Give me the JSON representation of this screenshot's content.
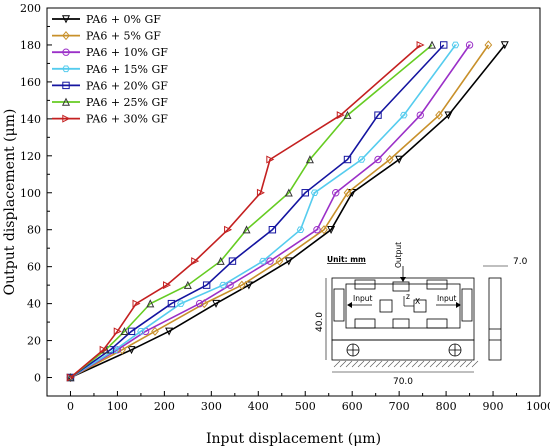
{
  "chart_data": {
    "type": "line",
    "title": "",
    "xlabel": "Input displacement (μm)",
    "ylabel": "Output displacement (μm)",
    "xlim": [
      -50,
      1000
    ],
    "ylim": [
      -10,
      200
    ],
    "x_ticks": [
      0,
      100,
      200,
      300,
      400,
      500,
      600,
      700,
      800,
      900,
      1000
    ],
    "y_ticks": [
      0,
      20,
      40,
      60,
      80,
      100,
      120,
      140,
      160,
      180,
      200
    ],
    "grid": false,
    "legend_position": "top-left",
    "series": [
      {
        "name": "PA6 + 0% GF",
        "color": "#000000",
        "marker": "triangle-down",
        "points": [
          [
            0,
            0
          ],
          [
            130,
            15
          ],
          [
            210,
            25
          ],
          [
            310,
            40
          ],
          [
            380,
            50
          ],
          [
            465,
            63
          ],
          [
            555,
            80
          ],
          [
            600,
            100
          ],
          [
            700,
            118
          ],
          [
            805,
            142
          ],
          [
            925,
            180
          ]
        ]
      },
      {
        "name": "PA6 + 5% GF",
        "color": "#c8902a",
        "marker": "diamond",
        "points": [
          [
            0,
            0
          ],
          [
            110,
            15
          ],
          [
            180,
            25
          ],
          [
            285,
            40
          ],
          [
            365,
            50
          ],
          [
            445,
            63
          ],
          [
            540,
            80
          ],
          [
            590,
            100
          ],
          [
            680,
            118
          ],
          [
            785,
            142
          ],
          [
            890,
            180
          ]
        ]
      },
      {
        "name": "PA6 + 10% GF",
        "color": "#9b30c8",
        "marker": "circle",
        "points": [
          [
            0,
            0
          ],
          [
            100,
            15
          ],
          [
            160,
            25
          ],
          [
            275,
            40
          ],
          [
            340,
            50
          ],
          [
            425,
            63
          ],
          [
            525,
            80
          ],
          [
            565,
            100
          ],
          [
            655,
            118
          ],
          [
            745,
            142
          ],
          [
            850,
            180
          ]
        ]
      },
      {
        "name": "PA6 + 15% GF",
        "color": "#55ccee",
        "marker": "hexagon",
        "points": [
          [
            0,
            0
          ],
          [
            95,
            15
          ],
          [
            150,
            25
          ],
          [
            235,
            40
          ],
          [
            325,
            50
          ],
          [
            410,
            63
          ],
          [
            490,
            80
          ],
          [
            520,
            100
          ],
          [
            620,
            118
          ],
          [
            710,
            142
          ],
          [
            820,
            180
          ]
        ]
      },
      {
        "name": "PA6 + 20% GF",
        "color": "#1414a0",
        "marker": "square",
        "points": [
          [
            0,
            0
          ],
          [
            85,
            15
          ],
          [
            130,
            25
          ],
          [
            215,
            40
          ],
          [
            290,
            50
          ],
          [
            345,
            63
          ],
          [
            430,
            80
          ],
          [
            500,
            100
          ],
          [
            590,
            118
          ],
          [
            655,
            142
          ],
          [
            795,
            180
          ]
        ]
      },
      {
        "name": "PA6 + 25% GF",
        "color": "#66cc22",
        "marker": "triangle-up",
        "points": [
          [
            0,
            0
          ],
          [
            75,
            15
          ],
          [
            115,
            25
          ],
          [
            170,
            40
          ],
          [
            250,
            50
          ],
          [
            320,
            63
          ],
          [
            375,
            80
          ],
          [
            465,
            100
          ],
          [
            510,
            118
          ],
          [
            590,
            142
          ],
          [
            770,
            180
          ]
        ]
      },
      {
        "name": "PA6 + 30% GF",
        "color": "#c42020",
        "marker": "triangle-right",
        "points": [
          [
            0,
            0
          ],
          [
            70,
            15
          ],
          [
            100,
            25
          ],
          [
            140,
            40
          ],
          [
            205,
            50
          ],
          [
            265,
            63
          ],
          [
            335,
            80
          ],
          [
            405,
            100
          ],
          [
            425,
            118
          ],
          [
            575,
            142
          ],
          [
            745,
            180
          ]
        ]
      }
    ],
    "inset": {
      "unit_label": "Unit: mm",
      "output_label": "Output",
      "input_left_label": "Input",
      "input_right_label": "Input",
      "z_label": "z",
      "x_label": "X",
      "width_dim": "70.0",
      "height_dim": "40.0",
      "thickness_dim": "7.0"
    }
  }
}
